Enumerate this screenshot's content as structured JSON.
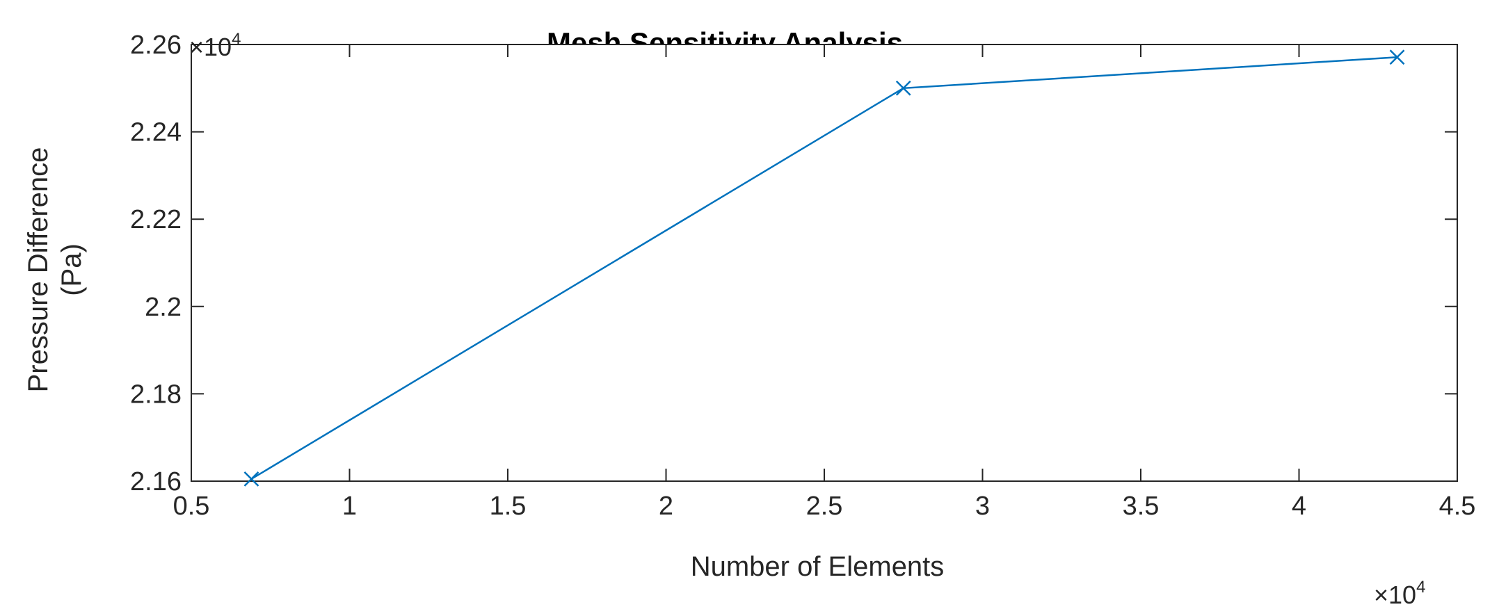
{
  "chart_data": {
    "type": "line",
    "title": "Mesh Sensitivity Analysis",
    "xlabel": "Number of Elements",
    "ylabel_lines": [
      "Pressure Difference",
      "(Pa)"
    ],
    "x_multiplier": {
      "base": "×10",
      "exp": "4"
    },
    "y_multiplier": {
      "base": "×10",
      "exp": "4"
    },
    "xlim": [
      0.5,
      4.5
    ],
    "ylim": [
      2.16,
      2.26
    ],
    "x_ticks": [
      0.5,
      1,
      1.5,
      2,
      2.5,
      3,
      3.5,
      4,
      4.5
    ],
    "x_tick_labels": [
      "0.5",
      "1",
      "1.5",
      "2",
      "2.5",
      "3",
      "3.5",
      "4",
      "4.5"
    ],
    "y_ticks": [
      2.16,
      2.18,
      2.2,
      2.22,
      2.24,
      2.26
    ],
    "y_tick_labels": [
      "2.16",
      "2.18",
      "2.2",
      "2.22",
      "2.24",
      "2.26"
    ],
    "grid": false,
    "series": [
      {
        "x": [
          0.69,
          2.75,
          4.31
        ],
        "y": [
          2.1605,
          2.25,
          2.2571
        ],
        "color": "#0072BD",
        "marker": "x"
      }
    ]
  }
}
